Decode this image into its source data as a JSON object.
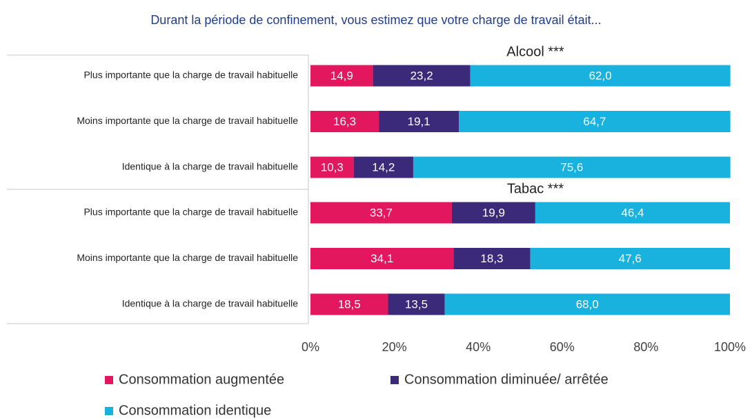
{
  "chart_data": {
    "type": "bar",
    "stacked": true,
    "orientation": "horizontal",
    "title": "Durant la période de confinement, vous estimez que votre charge de travail était...",
    "xlim": [
      0,
      100
    ],
    "xticks": [
      {
        "value": 0,
        "label": "0%"
      },
      {
        "value": 20,
        "label": "20%"
      },
      {
        "value": 40,
        "label": "40%"
      },
      {
        "value": 60,
        "label": "60%"
      },
      {
        "value": 80,
        "label": "80%"
      },
      {
        "value": 100,
        "label": "100%"
      }
    ],
    "legend": [
      {
        "name": "Consommation augmentée",
        "color": "#e3175e"
      },
      {
        "name": "Consommation diminuée/ arrêtée",
        "color": "#3b2a7a"
      },
      {
        "name": "Consommation identique",
        "color": "#19b1de"
      }
    ],
    "panels": [
      {
        "title": "Alcool ***",
        "categories": [
          "Plus importante que la charge de travail habituelle",
          "Moins importante que la charge de travail habituelle",
          "Identique à la charge de travail habituelle"
        ],
        "series": [
          {
            "values": [
              14.9,
              16.3,
              10.3
            ],
            "value_labels": [
              "14,9",
              "16,3",
              "10,3"
            ]
          },
          {
            "values": [
              23.2,
              19.1,
              14.2
            ],
            "value_labels": [
              "23,2",
              "19,1",
              "14,2"
            ]
          },
          {
            "values": [
              62.0,
              64.7,
              75.6
            ],
            "value_labels": [
              "62,0",
              "64,7",
              "75,6"
            ]
          }
        ]
      },
      {
        "title": "Tabac ***",
        "categories": [
          "Plus importante que la charge de travail habituelle",
          "Moins importante que la charge de travail habituelle",
          "Identique à la charge de travail habituelle"
        ],
        "series": [
          {
            "values": [
              33.7,
              34.1,
              18.5
            ],
            "value_labels": [
              "33,7",
              "34,1",
              "18,5"
            ]
          },
          {
            "values": [
              19.9,
              18.3,
              13.5
            ],
            "value_labels": [
              "19,9",
              "18,3",
              "13,5"
            ]
          },
          {
            "values": [
              46.4,
              47.6,
              68.0
            ],
            "value_labels": [
              "46,4",
              "47,6",
              "68,0"
            ]
          }
        ]
      }
    ]
  }
}
